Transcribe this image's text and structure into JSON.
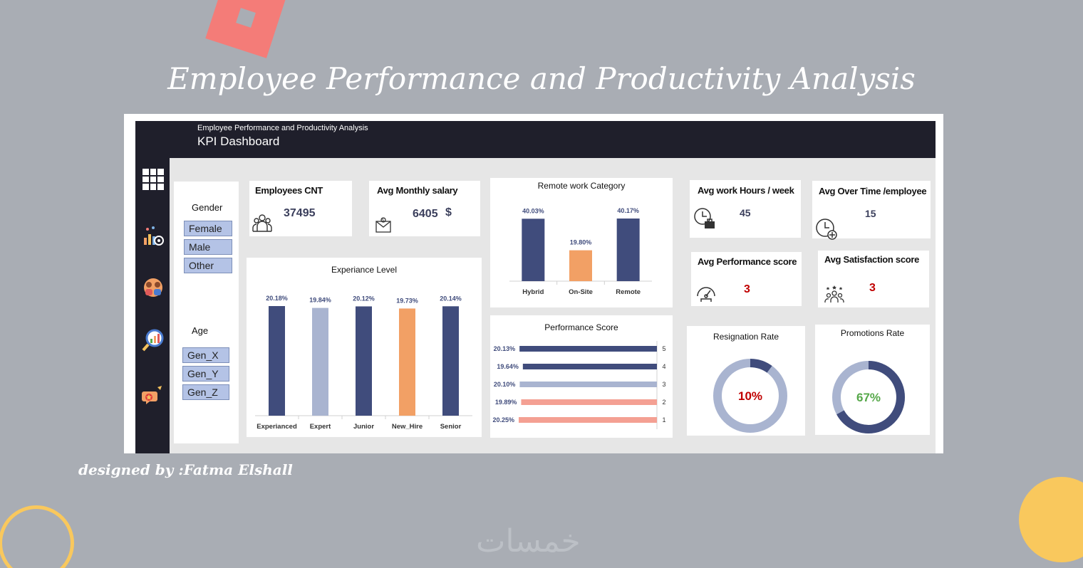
{
  "page": {
    "title": "Employee Performance and Productivity Analysis",
    "credit": "designed by :Fatma Elshall",
    "watermark": "خمسات"
  },
  "dashboard": {
    "subtitle": "Employee Performance and Productivity Analysis",
    "title": "KPI Dashboard"
  },
  "nav": {
    "icons": [
      "grid-icon",
      "analytics-icon",
      "team-icon",
      "search-chart-icon",
      "chat-icon"
    ]
  },
  "slicers": {
    "gender": {
      "title": "Gender",
      "options": [
        "Female",
        "Male",
        "Other"
      ]
    },
    "age": {
      "title": "Age",
      "options": [
        "Gen_X",
        "Gen_Y",
        "Gen_Z"
      ]
    }
  },
  "kpis": {
    "employees": {
      "title": "Employees CNT",
      "value": "37495",
      "icon": "people-icon"
    },
    "salary": {
      "title": "Avg Monthly salary",
      "value": "6405",
      "unit": "$",
      "icon": "money-icon"
    },
    "hours": {
      "title": "Avg work Hours / week",
      "value": "45",
      "icon": "clock-briefcase-icon"
    },
    "overtime": {
      "title": "Avg Over Time /employee",
      "value": "15",
      "icon": "clock-plus-icon"
    },
    "performance": {
      "title": "Avg Performance score",
      "value": "3",
      "icon": "gauge-icon"
    },
    "satisfaction": {
      "title": "Avg Satisfaction score",
      "value": "3",
      "icon": "people-stars-icon"
    }
  },
  "colors": {
    "navy": "#404c7c",
    "light": "#a9b4d0",
    "orange": "#f2a065",
    "salmon": "#f4a093",
    "red": "#c00000",
    "green": "#56a84a"
  },
  "chart_data": [
    {
      "id": "experience",
      "type": "bar",
      "title": "Experiance Level",
      "categories": [
        "Experianced",
        "Expert",
        "Junior",
        "New_Hire",
        "Senior"
      ],
      "values": [
        20.18,
        19.84,
        20.12,
        19.73,
        20.14
      ],
      "labels": [
        "20.18%",
        "19.84%",
        "20.12%",
        "19.73%",
        "20.14%"
      ],
      "colors": [
        "#404c7c",
        "#a9b4d0",
        "#404c7c",
        "#f2a065",
        "#404c7c"
      ]
    },
    {
      "id": "remote",
      "type": "bar",
      "title": "Remote work Category",
      "categories": [
        "Hybrid",
        "On-Site",
        "Remote"
      ],
      "values": [
        40.03,
        19.8,
        40.17
      ],
      "labels": [
        "40.03%",
        "19.80%",
        "40.17%"
      ],
      "colors": [
        "#404c7c",
        "#f2a065",
        "#404c7c"
      ]
    },
    {
      "id": "performance",
      "type": "bar",
      "orientation": "horizontal",
      "title": "Performance Score",
      "categories": [
        "5",
        "4",
        "3",
        "2",
        "1"
      ],
      "values": [
        20.13,
        19.64,
        20.1,
        19.89,
        20.25
      ],
      "labels": [
        "20.13%",
        "19.64%",
        "20.10%",
        "19.89%",
        "20.25%"
      ],
      "colors": [
        "#404c7c",
        "#404c7c",
        "#a9b4d0",
        "#f4a093",
        "#f4a093"
      ]
    },
    {
      "id": "resignation",
      "type": "pie",
      "title": "Resignation Rate",
      "value": 10,
      "label": "10%",
      "color": "#404c7c",
      "label_color": "#c00000"
    },
    {
      "id": "promotions",
      "type": "pie",
      "title": "Promotions Rate",
      "value": 67,
      "label": "67%",
      "color": "#404c7c",
      "label_color": "#56a84a"
    }
  ]
}
